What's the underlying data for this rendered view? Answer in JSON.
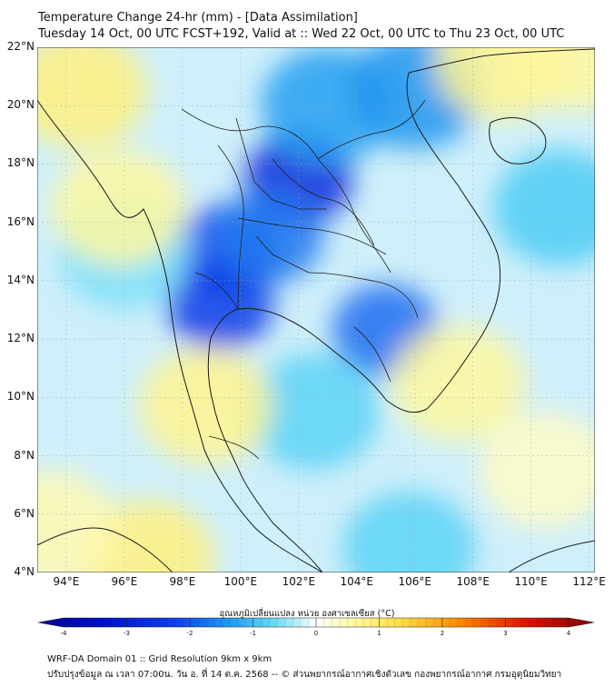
{
  "header": {
    "title": "Temperature Change 24-hr (mm) - [Data Assimilation]",
    "subtitle": "Tuesday 14 Oct, 00 UTC FCST+192, Valid at :: Wed 22 Oct, 00 UTC to Thu 23 Oct, 00 UTC"
  },
  "axes": {
    "lat_labels": [
      "22°N",
      "20°N",
      "18°N",
      "16°N",
      "14°N",
      "12°N",
      "10°N",
      "8°N",
      "6°N",
      "4°N"
    ],
    "lon_labels": [
      "94°E",
      "96°E",
      "98°E",
      "100°E",
      "102°E",
      "104°E",
      "106°E",
      "108°E",
      "110°E",
      "112°E"
    ]
  },
  "colorbar": {
    "title": "อุณหภูมิเปลี่ยนแปลง หน่วย องศาเซลเซียส (°C)",
    "ticks": [
      "-4",
      "-3",
      "-2",
      "-1",
      "0",
      "1",
      "2",
      "3",
      "4"
    ],
    "cold_color": "#000090",
    "neutral_color": "#ffffff",
    "warm_color": "#800000"
  },
  "footer": {
    "line1": "WRF-DA Domain 01 :: Grid Resolution 9km x 9km",
    "line2": "ปรับปรุงข้อมูล ณ เวลา 07:00น. วัน อ. ที่ 14 ต.ค. 2568 -- © ส่วนพยากรณ์อากาศเชิงตัวเลข กองพยากรณ์อากาศ กรมอุตุนิยมวิทยา"
  },
  "chart_data": {
    "type": "heatmap",
    "variable": "24-hr temperature change (°C)",
    "lat_range": [
      4,
      22
    ],
    "lon_range": [
      93,
      112.2
    ],
    "value_range": [
      -4,
      4
    ],
    "features": [
      {
        "name": "strong cooling north-central Thailand / Laos",
        "lat": 17.5,
        "lon": 102,
        "value": -2.7
      },
      {
        "name": "cooling western Thailand",
        "lat": 15,
        "lon": 99.5,
        "value": -2.2
      },
      {
        "name": "cooling upper Gulf / west coast",
        "lat": 13.2,
        "lon": 99.3,
        "value": -2.4
      },
      {
        "name": "cooling central Thailand",
        "lat": 15.5,
        "lon": 101,
        "value": -1.8
      },
      {
        "name": "cooling northern Laos",
        "lat": 20,
        "lon": 103,
        "value": -1.4
      },
      {
        "name": "cooling north Vietnam",
        "lat": 20.5,
        "lon": 106,
        "value": -1.5
      },
      {
        "name": "cooling Cambodia",
        "lat": 12.3,
        "lon": 105,
        "value": -1.9
      },
      {
        "name": "cooling central Andaman Sea",
        "lat": 15,
        "lon": 96,
        "value": -0.6
      },
      {
        "name": "cooling Gulf of Thailand",
        "lat": 9.5,
        "lon": 102.5,
        "value": -0.8
      },
      {
        "name": "cooling South China Sea east",
        "lat": 16.5,
        "lon": 111,
        "value": -0.9
      },
      {
        "name": "warming Myanmar northwest",
        "lat": 20.5,
        "lon": 94.5,
        "value": 0.7
      },
      {
        "name": "warming Myanmar coast",
        "lat": 16.5,
        "lon": 95.8,
        "value": 0.5
      },
      {
        "name": "warming South China coast",
        "lat": 21.5,
        "lon": 109,
        "value": 0.6
      },
      {
        "name": "warming Hainan east",
        "lat": 21.8,
        "lon": 111.5,
        "value": 0.5
      },
      {
        "name": "warming southern peninsula",
        "lat": 9.7,
        "lon": 98.8,
        "value": 0.6
      },
      {
        "name": "warming Sumatra north",
        "lat": 4.5,
        "lon": 96.8,
        "value": 0.7
      },
      {
        "name": "warming Andaman west",
        "lat": 5.5,
        "lon": 93.5,
        "value": 0.4
      },
      {
        "name": "warming east of Mekong delta",
        "lat": 10.5,
        "lon": 107.5,
        "value": 0.5
      },
      {
        "name": "warming South China Sea south",
        "lat": 7.5,
        "lon": 110.5,
        "value": 0.3
      },
      {
        "name": "cooling Malaysia east",
        "lat": 4.8,
        "lon": 105.8,
        "value": -0.8
      }
    ]
  }
}
